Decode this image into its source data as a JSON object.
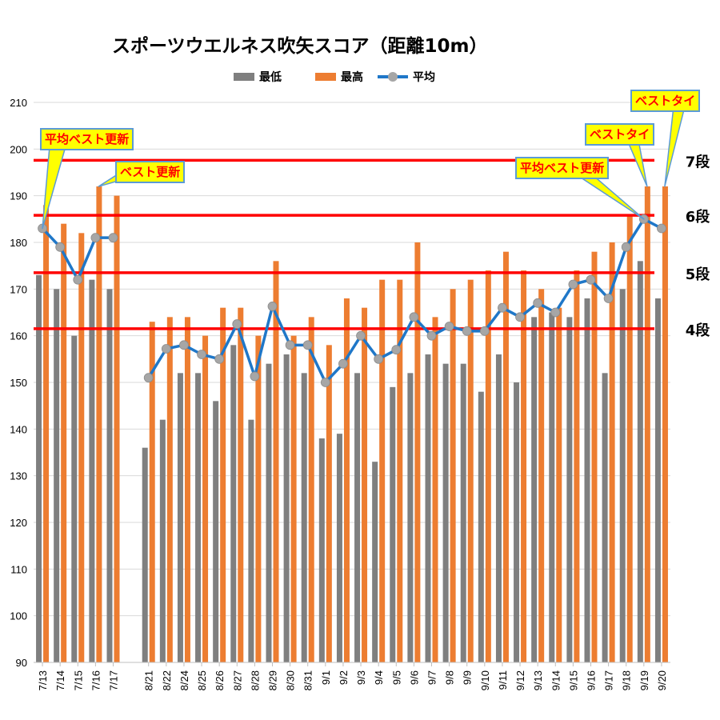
{
  "chart_data": {
    "type": "bar",
    "title": "スポーツウエルネス吹矢スコア（距離10m）",
    "categories": [
      "7/13",
      "7/14",
      "7/15",
      "7/16",
      "7/17",
      "",
      "8/21",
      "8/22",
      "8/24",
      "8/25",
      "8/26",
      "8/27",
      "8/28",
      "8/29",
      "8/30",
      "8/31",
      "9/1",
      "9/2",
      "9/3",
      "9/4",
      "9/5",
      "9/6",
      "9/7",
      "9/8",
      "9/9",
      "9/10",
      "9/11",
      "9/12",
      "9/13",
      "9/14",
      "9/15",
      "9/16",
      "9/17",
      "9/18",
      "9/19",
      "9/20"
    ],
    "series": [
      {
        "name": "最低",
        "kind": "bar",
        "color": "#7f7f7f",
        "values": [
          173,
          170,
          160,
          172,
          170,
          null,
          136,
          142,
          152,
          152,
          146,
          158,
          142,
          154,
          156,
          152,
          138,
          139,
          152,
          133,
          149,
          152,
          156,
          154,
          154,
          148,
          156,
          150,
          164,
          165,
          164,
          168,
          152,
          170,
          176,
          168
        ]
      },
      {
        "name": "最高",
        "kind": "bar",
        "color": "#ed7d31",
        "values": [
          188,
          184,
          182,
          192,
          190,
          null,
          163,
          164,
          164,
          160,
          166,
          166,
          160,
          176,
          160,
          164,
          158,
          168,
          166,
          172,
          172,
          180,
          164,
          170,
          172,
          174,
          178,
          174,
          170,
          166,
          174,
          178,
          180,
          186,
          192,
          192
        ]
      },
      {
        "name": "平均",
        "kind": "line",
        "color": "#1f77c8",
        "marker_color": "#a6a6a6",
        "values": [
          183,
          179,
          172,
          181,
          181,
          null,
          151,
          157.2,
          158,
          156,
          155,
          162.5,
          151.3,
          166.3,
          158,
          158,
          150,
          154,
          160,
          155,
          157,
          164,
          160,
          162,
          161,
          161,
          166,
          164,
          167,
          165,
          171,
          172,
          168,
          179,
          185,
          183
        ]
      }
    ],
    "ylim": [
      90,
      210
    ],
    "yticks": [
      90,
      100,
      110,
      120,
      130,
      140,
      150,
      160,
      170,
      180,
      190,
      200,
      210
    ],
    "grid": true,
    "legend_position": "top",
    "reference_lines": [
      {
        "value": 161.5,
        "label": "4段",
        "color": "#ff0000"
      },
      {
        "value": 173.5,
        "label": "5段",
        "color": "#ff0000"
      },
      {
        "value": 185.8,
        "label": "6段",
        "color": "#ff0000"
      },
      {
        "value": 197.6,
        "label": "7段",
        "color": "#ff0000"
      }
    ],
    "annotations": [
      {
        "text": "平均ベスト更新",
        "target_index": 0,
        "target_series": "平均"
      },
      {
        "text": "ベスト更新",
        "target_index": 3,
        "target_series": "最高"
      },
      {
        "text": "平均ベスト更新",
        "target_index": 34,
        "target_series": "平均"
      },
      {
        "text": "ベストタイ",
        "target_index": 34,
        "target_series": "最高"
      },
      {
        "text": "ベストタイ",
        "target_index": 35,
        "target_series": "最高"
      }
    ]
  },
  "legend": {
    "min_label": "最低",
    "max_label": "最高",
    "avg_label": "平均",
    "min_color": "#7f7f7f",
    "max_color": "#ed7d31",
    "avg_color": "#1f77c8",
    "avg_marker_color": "#a6a6a6"
  }
}
